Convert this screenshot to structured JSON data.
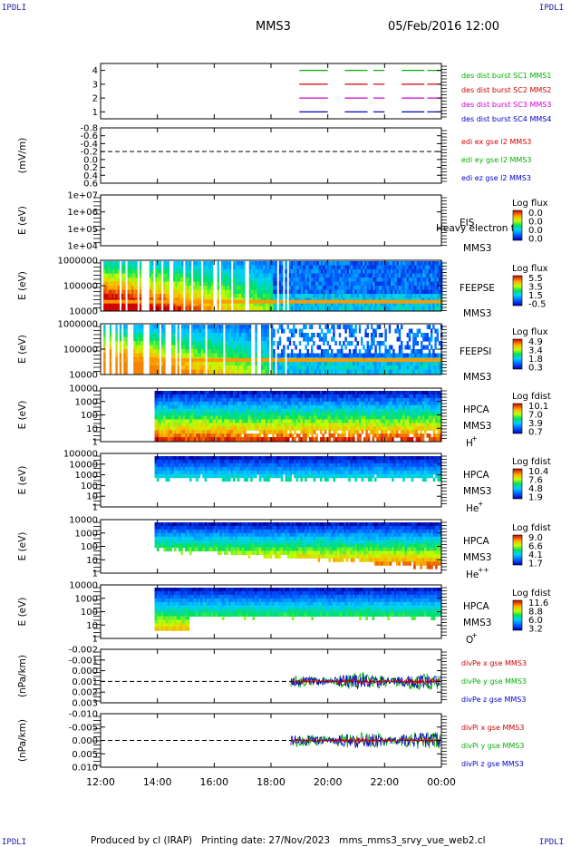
{
  "corners": {
    "tl": "IPDLI",
    "tr": "IPDLI",
    "bl": "IPDLI",
    "br": "IPDLI"
  },
  "header": {
    "spacecraft": "MMS3",
    "datetime": "05/Feb/2016 12:00"
  },
  "footer": {
    "text": "Produced by cl (IRAP)   Printing date: 27/Nov/2023   mms_mms3_srvy_vue_web2.cl"
  },
  "colors": {
    "red": "#d00000",
    "green": "#00b000",
    "blue": "#0000c8",
    "magenta": "#d000d0"
  },
  "chart_data": [
    {
      "type": "line",
      "id": "burst",
      "ylabel": "",
      "yticks": [
        "1",
        "2",
        "3",
        "4"
      ],
      "ylim": [
        0.5,
        4.5
      ],
      "series": [
        {
          "name": "des dist burst SC1 MMS1",
          "y": 4,
          "color": "green",
          "segments": [
            [
              19.0,
              20.0
            ],
            [
              20.6,
              21.4
            ],
            [
              21.6,
              22.0
            ],
            [
              22.6,
              23.4
            ],
            [
              23.5,
              24.0
            ]
          ]
        },
        {
          "name": "des dist burst SC2 MMS2",
          "y": 3,
          "color": "red",
          "segments": [
            [
              19.0,
              20.0
            ],
            [
              20.6,
              21.4
            ],
            [
              21.6,
              22.0
            ],
            [
              22.6,
              23.4
            ],
            [
              23.5,
              24.0
            ]
          ]
        },
        {
          "name": "des dist burst SC3 MMS3",
          "y": 2,
          "color": "magenta",
          "segments": [
            [
              19.0,
              20.0
            ],
            [
              20.6,
              21.4
            ],
            [
              21.6,
              22.0
            ],
            [
              22.6,
              23.4
            ],
            [
              23.5,
              24.0
            ]
          ]
        },
        {
          "name": "des dist burst SC4 MMS4",
          "y": 1,
          "color": "blue",
          "segments": [
            [
              19.0,
              20.0
            ],
            [
              20.6,
              21.4
            ],
            [
              21.6,
              22.0
            ],
            [
              22.6,
              23.4
            ],
            [
              23.5,
              24.0
            ]
          ]
        }
      ]
    },
    {
      "type": "line",
      "id": "edi",
      "ylabel": "(mV/m)",
      "yticks": [
        "0.6",
        "0.4",
        "0.2",
        "0.0",
        "-0.2",
        "-0.4",
        "-0.6",
        "-0.8"
      ],
      "ylim": [
        -0.8,
        0.6
      ],
      "series": [
        {
          "name": "edi ex gse l2 MMS3",
          "color": "red"
        },
        {
          "name": "edi ey gse l2 MMS3",
          "color": "green"
        },
        {
          "name": "edi ez gse l2 MMS3",
          "color": "blue"
        }
      ]
    },
    {
      "type": "heatmap",
      "id": "eis",
      "ylabel": "E (eV)",
      "yticks": [
        "1e+04",
        "1e+05",
        "1e+06",
        "1e+07"
      ],
      "ylim": [
        10000,
        10000000
      ],
      "label": [
        "EIS",
        "MMS3"
      ],
      "overlay": "Heavy electron to",
      "colorbar": {
        "title": "Log flux",
        "ticks": [
          "0.0",
          "0.0",
          "0.0",
          "0.0"
        ]
      },
      "fill": "empty"
    },
    {
      "type": "heatmap",
      "id": "feepse",
      "ylabel": "E (eV)",
      "yticks": [
        "10000",
        "100000",
        "1000000"
      ],
      "ylim": [
        10000,
        1000000
      ],
      "label": [
        "FEEPSE",
        "MMS3"
      ],
      "colorbar": {
        "title": "Log flux",
        "ticks": [
          "5.5",
          "3.5",
          "1.5",
          "-0.5"
        ]
      },
      "start": 12.0
    },
    {
      "type": "heatmap",
      "id": "feepsi",
      "ylabel": "E (eV)",
      "yticks": [
        "10000",
        "100000",
        "1000000"
      ],
      "ylim": [
        10000,
        1000000
      ],
      "label": [
        "FEEPSI",
        "MMS3"
      ],
      "colorbar": {
        "title": "Log flux",
        "ticks": [
          "4.9",
          "3.4",
          "1.8",
          "0.3"
        ]
      },
      "start": 12.0
    },
    {
      "type": "heatmap",
      "id": "hpca-h",
      "ylabel": "E (eV)",
      "yticks": [
        "1",
        "10",
        "100",
        "1000",
        "10000"
      ],
      "ylim": [
        1,
        30000
      ],
      "label": [
        "HPCA",
        "MMS3",
        "H",
        "+"
      ],
      "colorbar": {
        "title": "Log fdist",
        "ticks": [
          "10.1",
          "7.0",
          "3.9",
          "0.7"
        ]
      },
      "start": 13.9
    },
    {
      "type": "heatmap",
      "id": "hpca-he",
      "ylabel": "E (eV)",
      "yticks": [
        "1",
        "10",
        "100",
        "1000",
        "10000",
        "100000"
      ],
      "ylim": [
        1,
        100000
      ],
      "label": [
        "HPCA",
        "MMS3",
        "He",
        "+"
      ],
      "colorbar": {
        "title": "Log fdist",
        "ticks": [
          "10.4",
          "7.6",
          "4.8",
          "1.9"
        ]
      },
      "start": 13.9
    },
    {
      "type": "heatmap",
      "id": "hpca-hepp",
      "ylabel": "E (eV)",
      "yticks": [
        "1",
        "10",
        "100",
        "1000",
        "10000"
      ],
      "ylim": [
        1,
        30000
      ],
      "label": [
        "HPCA",
        "MMS3",
        "He",
        "++"
      ],
      "colorbar": {
        "title": "Log fdist",
        "ticks": [
          "9.0",
          "6.6",
          "4.1",
          "1.7"
        ]
      },
      "start": 13.9
    },
    {
      "type": "heatmap",
      "id": "hpca-o",
      "ylabel": "E (eV)",
      "yticks": [
        "1",
        "10",
        "100",
        "1000",
        "10000"
      ],
      "ylim": [
        1,
        30000
      ],
      "label": [
        "HPCA",
        "MMS3",
        "O",
        "+"
      ],
      "colorbar": {
        "title": "Log fdist",
        "ticks": [
          "11.6",
          "8.8",
          "6.0",
          "3.2"
        ]
      },
      "start": 13.9
    },
    {
      "type": "line",
      "id": "divpe",
      "ylabel": "(nPa/km)",
      "yticks": [
        "0.003",
        "0.002",
        "0.001",
        "0.000",
        "-0.001",
        "-0.002"
      ],
      "ylim": [
        -0.002,
        0.003
      ],
      "start": 18.7,
      "series": [
        {
          "name": "divPe x gse MMS3",
          "color": "red"
        },
        {
          "name": "divPe y gse MMS3",
          "color": "green"
        },
        {
          "name": "divPe z gse MMS3",
          "color": "blue"
        }
      ]
    },
    {
      "type": "line",
      "id": "divpi",
      "ylabel": "(nPa/km)",
      "yticks": [
        "0.010",
        "0.005",
        "0.000",
        "-0.005",
        "-0.010"
      ],
      "ylim": [
        -0.01,
        0.01
      ],
      "start": 18.7,
      "series": [
        {
          "name": "divPi x gse MMS3",
          "color": "red"
        },
        {
          "name": "divPi y gse MMS3",
          "color": "green"
        },
        {
          "name": "divPi z gse MMS3",
          "color": "blue"
        }
      ]
    }
  ],
  "xaxis": {
    "ticks": [
      "12:00",
      "14:00",
      "16:00",
      "18:00",
      "20:00",
      "22:00",
      "00:00"
    ],
    "range": [
      12,
      24
    ]
  }
}
